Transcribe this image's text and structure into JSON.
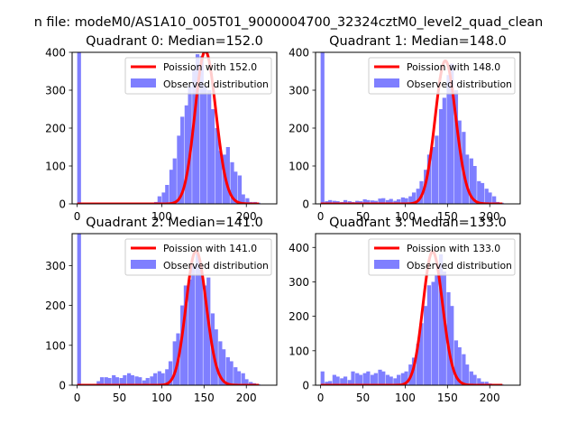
{
  "figure": {
    "suptitle": "n file: modeM0/AS1A10_005T01_9000004700_32324cztM0_level2_quad_clean"
  },
  "colors": {
    "hist": "#7f7fff",
    "poisson": "#ff0000",
    "axes": "#000000",
    "legend_border": "#cccccc"
  },
  "chart_data": [
    {
      "type": "bar",
      "quadrant": 0,
      "title": "Quadrant 0: Median=152.0",
      "legend": {
        "line": "Poission with 152.0",
        "bars": "Observed distribution",
        "placement": "upper-right"
      },
      "median": 152.0,
      "xlim": [
        -6,
        236
      ],
      "ylim": [
        0,
        400
      ],
      "xticks": [
        0,
        100,
        200
      ],
      "yticks": [
        0,
        100,
        200,
        300,
        400
      ],
      "bin_width": 4.5,
      "bins": [
        [
          0,
          400
        ],
        [
          86,
          2
        ],
        [
          91,
          5
        ],
        [
          95,
          20
        ],
        [
          100,
          30
        ],
        [
          104,
          50
        ],
        [
          109,
          90
        ],
        [
          113,
          120
        ],
        [
          118,
          180
        ],
        [
          122,
          230
        ],
        [
          127,
          260
        ],
        [
          131,
          310
        ],
        [
          136,
          355
        ],
        [
          140,
          395
        ],
        [
          145,
          390
        ],
        [
          149,
          310
        ],
        [
          154,
          300
        ],
        [
          158,
          250
        ],
        [
          163,
          200
        ],
        [
          167,
          140
        ],
        [
          172,
          130
        ],
        [
          176,
          150
        ],
        [
          181,
          110
        ],
        [
          185,
          85
        ],
        [
          190,
          75
        ],
        [
          194,
          25
        ],
        [
          199,
          15
        ],
        [
          203,
          5
        ],
        [
          208,
          5
        ],
        [
          212,
          3
        ]
      ]
    },
    {
      "type": "bar",
      "quadrant": 1,
      "title": "Quadrant 1: Median=148.0",
      "legend": {
        "line": "Poission with 148.0",
        "bars": "Observed distribution",
        "placement": "upper-right"
      },
      "median": 148.0,
      "xlim": [
        -6,
        236
      ],
      "ylim": [
        0,
        400
      ],
      "xticks": [
        0,
        50,
        100,
        150,
        200
      ],
      "yticks": [
        0,
        100,
        200,
        300,
        400
      ],
      "bin_width": 4.5,
      "bins": [
        [
          0,
          400
        ],
        [
          5,
          7
        ],
        [
          9,
          10
        ],
        [
          14,
          8
        ],
        [
          18,
          7
        ],
        [
          23,
          5
        ],
        [
          27,
          10
        ],
        [
          32,
          7
        ],
        [
          36,
          5
        ],
        [
          41,
          8
        ],
        [
          45,
          7
        ],
        [
          50,
          12
        ],
        [
          54,
          10
        ],
        [
          59,
          9
        ],
        [
          63,
          8
        ],
        [
          68,
          14
        ],
        [
          72,
          15
        ],
        [
          77,
          10
        ],
        [
          81,
          13
        ],
        [
          86,
          8
        ],
        [
          90,
          12
        ],
        [
          95,
          17
        ],
        [
          99,
          15
        ],
        [
          104,
          20
        ],
        [
          108,
          30
        ],
        [
          113,
          40
        ],
        [
          117,
          60
        ],
        [
          122,
          90
        ],
        [
          126,
          130
        ],
        [
          131,
          150
        ],
        [
          135,
          180
        ],
        [
          140,
          250
        ],
        [
          144,
          280
        ],
        [
          149,
          340
        ],
        [
          153,
          370
        ],
        [
          158,
          300
        ],
        [
          162,
          220
        ],
        [
          167,
          190
        ],
        [
          171,
          130
        ],
        [
          176,
          120
        ],
        [
          180,
          100
        ],
        [
          185,
          60
        ],
        [
          189,
          55
        ],
        [
          194,
          40
        ],
        [
          198,
          30
        ],
        [
          203,
          20
        ],
        [
          207,
          5
        ],
        [
          212,
          3
        ]
      ]
    },
    {
      "type": "bar",
      "quadrant": 2,
      "title": "Quadrant 2: Median=141.0",
      "legend": {
        "line": "Poission with 141.0",
        "bars": "Observed distribution",
        "placement": "upper-right"
      },
      "median": 141.0,
      "xlim": [
        -6,
        236
      ],
      "ylim": [
        0,
        380
      ],
      "xticks": [
        0,
        50,
        100,
        150,
        200
      ],
      "yticks": [
        0,
        100,
        200,
        300
      ],
      "bin_width": 4.5,
      "bins": [
        [
          0,
          380
        ],
        [
          23,
          10
        ],
        [
          27,
          20
        ],
        [
          32,
          20
        ],
        [
          36,
          18
        ],
        [
          41,
          25
        ],
        [
          45,
          20
        ],
        [
          50,
          18
        ],
        [
          54,
          25
        ],
        [
          59,
          30
        ],
        [
          63,
          25
        ],
        [
          68,
          22
        ],
        [
          72,
          20
        ],
        [
          77,
          12
        ],
        [
          81,
          18
        ],
        [
          86,
          22
        ],
        [
          90,
          30
        ],
        [
          95,
          35
        ],
        [
          99,
          30
        ],
        [
          104,
          40
        ],
        [
          108,
          60
        ],
        [
          113,
          110
        ],
        [
          117,
          130
        ],
        [
          122,
          200
        ],
        [
          126,
          250
        ],
        [
          131,
          265
        ],
        [
          135,
          300
        ],
        [
          140,
          330
        ],
        [
          144,
          290
        ],
        [
          149,
          250
        ],
        [
          153,
          270
        ],
        [
          158,
          180
        ],
        [
          162,
          140
        ],
        [
          167,
          110
        ],
        [
          171,
          90
        ],
        [
          176,
          70
        ],
        [
          180,
          60
        ],
        [
          185,
          45
        ],
        [
          189,
          35
        ],
        [
          194,
          30
        ],
        [
          198,
          15
        ],
        [
          203,
          8
        ],
        [
          207,
          5
        ],
        [
          212,
          2
        ]
      ]
    },
    {
      "type": "bar",
      "quadrant": 3,
      "title": "Quadrant 3: Median=133.0",
      "legend": {
        "line": "Poission with 133.0",
        "bars": "Observed distribution",
        "placement": "upper-right"
      },
      "median": 133.0,
      "xlim": [
        -6,
        236
      ],
      "ylim": [
        0,
        440
      ],
      "xticks": [
        0,
        50,
        100,
        150,
        200
      ],
      "yticks": [
        0,
        100,
        200,
        300,
        400
      ],
      "bin_width": 4.5,
      "bins": [
        [
          0,
          40
        ],
        [
          5,
          10
        ],
        [
          9,
          12
        ],
        [
          14,
          30
        ],
        [
          18,
          25
        ],
        [
          23,
          20
        ],
        [
          27,
          25
        ],
        [
          32,
          15
        ],
        [
          36,
          40
        ],
        [
          41,
          35
        ],
        [
          45,
          30
        ],
        [
          50,
          35
        ],
        [
          54,
          40
        ],
        [
          59,
          30
        ],
        [
          63,
          35
        ],
        [
          68,
          45
        ],
        [
          72,
          40
        ],
        [
          77,
          30
        ],
        [
          81,
          25
        ],
        [
          86,
          20
        ],
        [
          90,
          30
        ],
        [
          95,
          35
        ],
        [
          99,
          40
        ],
        [
          104,
          60
        ],
        [
          108,
          80
        ],
        [
          113,
          120
        ],
        [
          117,
          180
        ],
        [
          122,
          230
        ],
        [
          126,
          290
        ],
        [
          131,
          300
        ],
        [
          135,
          320
        ],
        [
          140,
          380
        ],
        [
          144,
          330
        ],
        [
          149,
          270
        ],
        [
          153,
          230
        ],
        [
          158,
          130
        ],
        [
          162,
          110
        ],
        [
          167,
          90
        ],
        [
          171,
          60
        ],
        [
          176,
          40
        ],
        [
          180,
          30
        ],
        [
          185,
          20
        ],
        [
          189,
          10
        ],
        [
          194,
          10
        ],
        [
          198,
          5
        ],
        [
          203,
          3
        ],
        [
          207,
          2
        ],
        [
          212,
          2
        ]
      ]
    }
  ]
}
